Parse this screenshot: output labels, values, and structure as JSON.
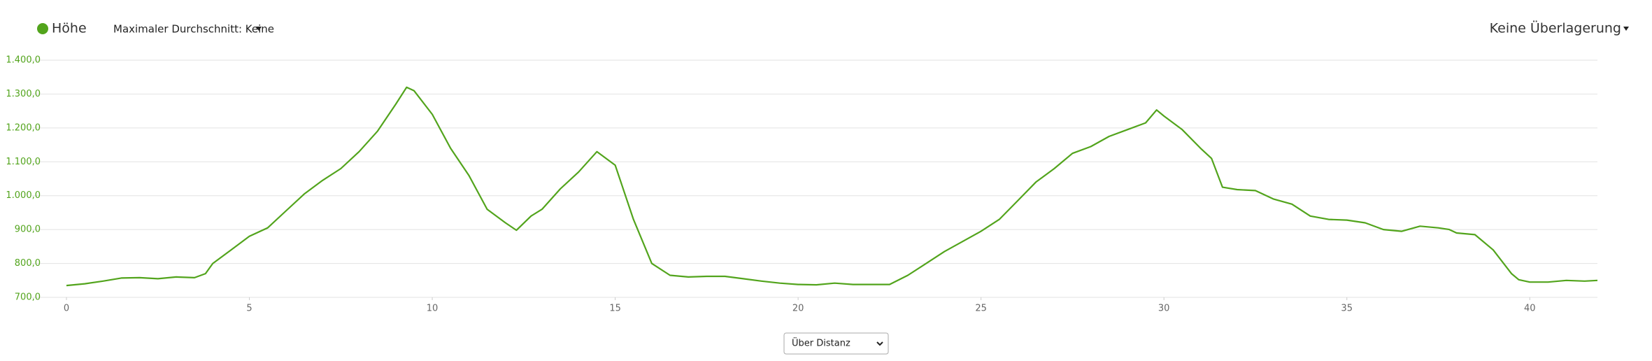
{
  "header": {
    "avg_label": "Maximaler Durchschnitt: Keine",
    "overlay_label": "Keine Überlagerung"
  },
  "footer": {
    "select_label": "Über Distanz"
  },
  "chart_data": {
    "type": "line",
    "x": [
      0,
      0.5,
      1,
      1.5,
      2,
      2.5,
      3,
      3.5,
      3.8,
      4,
      4.5,
      5,
      5.5,
      6,
      6.5,
      7,
      7.5,
      8,
      8.5,
      9,
      9.3,
      9.5,
      10,
      10.5,
      11,
      11.5,
      12,
      12.3,
      12.7,
      13,
      13.5,
      14,
      14.5,
      15,
      15.5,
      16,
      16.5,
      17,
      17.5,
      18,
      18.5,
      19,
      19.5,
      20,
      20.5,
      21,
      21.5,
      22,
      22.5,
      23,
      23.5,
      24,
      24.5,
      25,
      25.5,
      26,
      26.5,
      27,
      27.5,
      28,
      28.5,
      29,
      29.5,
      29.8,
      30,
      30.5,
      31,
      31.3,
      31.6,
      32,
      32.5,
      33,
      33.5,
      34,
      34.5,
      35,
      35.5,
      36,
      36.5,
      37,
      37.5,
      37.8,
      38,
      38.5,
      39,
      39.5,
      39.7,
      40,
      40.5,
      41,
      41.5,
      41.85
    ],
    "series": [
      {
        "name": "Höhe",
        "color": "#52a41c",
        "values": [
          735,
          740,
          748,
          757,
          758,
          755,
          760,
          758,
          770,
          800,
          840,
          880,
          905,
          955,
          1005,
          1045,
          1080,
          1130,
          1190,
          1270,
          1320,
          1310,
          1240,
          1140,
          1060,
          960,
          920,
          898,
          940,
          960,
          1020,
          1070,
          1130,
          1090,
          930,
          800,
          765,
          760,
          762,
          762,
          755,
          748,
          742,
          738,
          737,
          742,
          738,
          738,
          738,
          765,
          800,
          835,
          865,
          895,
          930,
          985,
          1040,
          1080,
          1125,
          1145,
          1175,
          1195,
          1215,
          1253,
          1235,
          1195,
          1140,
          1110,
          1025,
          1018,
          1015,
          990,
          975,
          940,
          930,
          928,
          920,
          900,
          895,
          910,
          905,
          900,
          890,
          885,
          840,
          770,
          752,
          745,
          745,
          750,
          748,
          750
        ]
      }
    ],
    "xlim": [
      0,
      41.85
    ],
    "ylim": [
      700,
      1400
    ],
    "xticks": [
      0,
      5,
      10,
      15,
      20,
      25,
      30,
      35,
      40
    ],
    "yticks": [
      {
        "value": 700,
        "label": "700,0"
      },
      {
        "value": 800,
        "label": "800,0"
      },
      {
        "value": 900,
        "label": "900,0"
      },
      {
        "value": 1000,
        "label": "1.000,0"
      },
      {
        "value": 1100,
        "label": "1.100,0"
      },
      {
        "value": 1200,
        "label": "1.200,0"
      },
      {
        "value": 1300,
        "label": "1.300,0"
      },
      {
        "value": 1400,
        "label": "1.400,0"
      }
    ],
    "grid": true
  }
}
